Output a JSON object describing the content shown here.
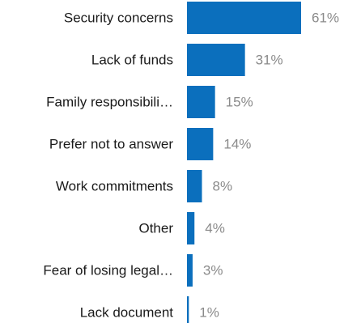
{
  "chart_data": {
    "type": "bar",
    "orientation": "horizontal",
    "title": "",
    "xlabel": "",
    "ylabel": "",
    "categories": [
      "Security concerns",
      "Lack of funds",
      "Family responsibili…",
      "Prefer not to answer",
      "Work commitments",
      "Other",
      "Fear of losing legal…",
      "Lack document"
    ],
    "values": [
      61,
      31,
      15,
      14,
      8,
      4,
      3,
      1
    ],
    "value_labels": [
      "61%",
      "31%",
      "15%",
      "14%",
      "8%",
      "4%",
      "3%",
      "1%"
    ],
    "unit": "%",
    "xlim": [
      0,
      61
    ],
    "grid": false,
    "legend": "none",
    "colors": {
      "bar": "#0b6fbd",
      "category_text": "#1a1a1a",
      "value_text": "#8a8a8a"
    }
  }
}
